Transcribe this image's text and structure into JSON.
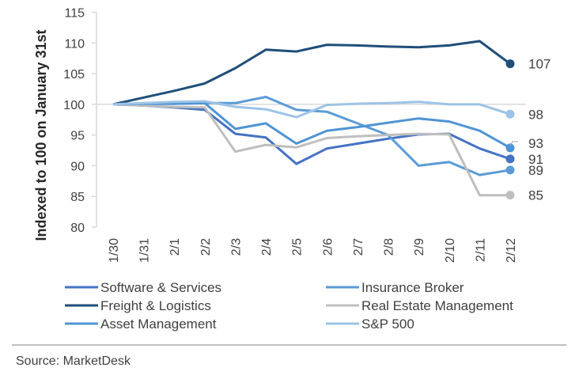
{
  "chart_data": {
    "type": "line",
    "title": "",
    "xlabel": "",
    "ylabel": "Indexed to 100 on January 31st",
    "ylim": [
      80,
      115
    ],
    "yticks": [
      80,
      85,
      90,
      95,
      100,
      105,
      110,
      115
    ],
    "grid": false,
    "reference_line": 100,
    "legend_position": "bottom",
    "categories": [
      "1/30",
      "1/31",
      "2/1",
      "2/2",
      "2/3",
      "2/4",
      "2/5",
      "2/6",
      "2/7",
      "2/8",
      "2/9",
      "2/10",
      "2/11",
      "2/12"
    ],
    "series": [
      {
        "name": "Software & Services",
        "color": "#4472C4",
        "end_label": "91",
        "values": [
          100,
          99.8,
          99.5,
          99.1,
          95.2,
          94.6,
          90.3,
          92.8,
          93.6,
          94.4,
          95.1,
          95.2,
          92.8,
          91.1
        ]
      },
      {
        "name": "Insurance Broker",
        "color": "#5B9BD5",
        "end_label": "89",
        "values": [
          100,
          100.1,
          100.1,
          100.2,
          100.2,
          101.2,
          99.1,
          98.8,
          96.9,
          95.0,
          90.0,
          90.6,
          88.5,
          89.3
        ]
      },
      {
        "name": "Freight & Logistics",
        "color": "#1F4E79",
        "end_label": "107",
        "values": [
          100,
          101.1,
          102.2,
          103.4,
          105.9,
          108.9,
          108.6,
          109.7,
          109.6,
          109.4,
          109.3,
          109.6,
          110.3,
          106.6
        ]
      },
      {
        "name": "Real Estate Management",
        "color": "#BFBFBF",
        "end_label": "85",
        "values": [
          100,
          99.8,
          99.6,
          99.5,
          92.3,
          93.4,
          93.0,
          94.5,
          94.8,
          95.0,
          95.2,
          95.1,
          85.2,
          85.2
        ]
      },
      {
        "name": "Asset Management",
        "color": "#4F94D4",
        "end_label": "93",
        "values": [
          100,
          100.1,
          100.1,
          100.2,
          96.0,
          96.9,
          93.6,
          95.7,
          96.3,
          97.0,
          97.7,
          97.2,
          95.7,
          92.9
        ]
      },
      {
        "name": "S&P 500",
        "color": "#9DC3E6",
        "end_label": "98",
        "values": [
          100,
          100.2,
          100.4,
          100.5,
          99.6,
          99.2,
          97.9,
          99.9,
          100.1,
          100.2,
          100.4,
          100.0,
          100.0,
          98.4
        ]
      }
    ]
  },
  "source": "Source: MarketDesk"
}
